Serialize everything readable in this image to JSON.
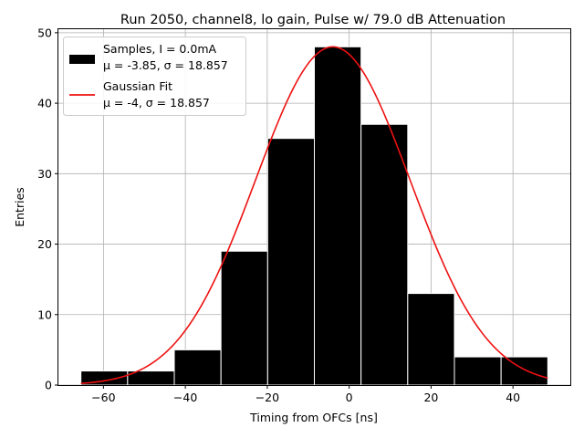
{
  "chart_data": {
    "type": "bar",
    "title": "Run 2050, channel8, lo gain, Pulse w/ 79.0 dB Attenuation",
    "xlabel": "Timing from OFCs [ns]",
    "ylabel": "Entries",
    "xlim": [
      -71,
      54
    ],
    "ylim": [
      0,
      50.5
    ],
    "xticks": [
      -60,
      -40,
      -20,
      0,
      20,
      40
    ],
    "xtick_labels": [
      "−60",
      "−40",
      "−20",
      "0",
      "20",
      "40"
    ],
    "yticks": [
      0,
      10,
      20,
      30,
      40,
      50
    ],
    "ytick_labels": [
      "0",
      "10",
      "20",
      "30",
      "40",
      "50"
    ],
    "grid": true,
    "histogram": {
      "name": "Samples, I = 0.0mA",
      "stats_line": "μ = -3.85, σ = 18.857",
      "color": "#000000",
      "bins": [
        {
          "x0": -65.5,
          "x1": -54.1,
          "count": 2
        },
        {
          "x0": -54.1,
          "x1": -42.7,
          "count": 2
        },
        {
          "x0": -42.7,
          "x1": -31.3,
          "count": 5
        },
        {
          "x0": -31.3,
          "x1": -19.9,
          "count": 19
        },
        {
          "x0": -19.9,
          "x1": -8.5,
          "count": 35
        },
        {
          "x0": -8.5,
          "x1": 2.9,
          "count": 48
        },
        {
          "x0": 2.9,
          "x1": 14.3,
          "count": 37
        },
        {
          "x0": 14.3,
          "x1": 25.7,
          "count": 13
        },
        {
          "x0": 25.7,
          "x1": 37.1,
          "count": 4
        },
        {
          "x0": 37.1,
          "x1": 48.5,
          "count": 4
        }
      ]
    },
    "fit": {
      "name": "Gaussian Fit",
      "stats_line": "μ = -4, σ = 18.857",
      "color": "#ee1111",
      "amplitude": 48,
      "mu": -4,
      "sigma": 18.857,
      "x_range": [
        -65.5,
        48.5
      ]
    },
    "legend_position": "upper-left"
  }
}
